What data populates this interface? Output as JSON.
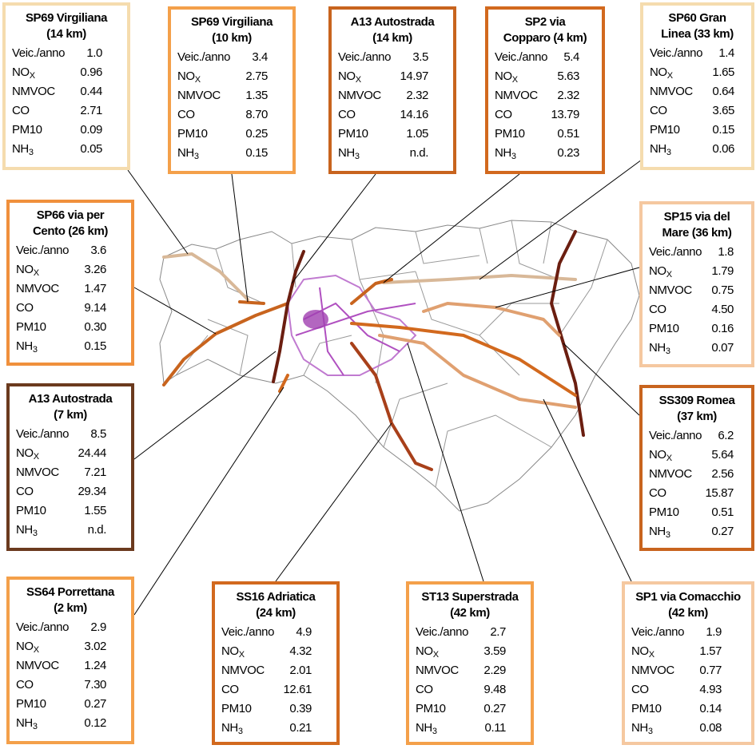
{
  "row_labels": [
    {
      "text": "Veic./anno"
    },
    {
      "text": "NO",
      "sub": "X"
    },
    {
      "text": "NMVOC"
    },
    {
      "text": "CO"
    },
    {
      "text": "PM10"
    },
    {
      "text": "NH",
      "sub": "3"
    }
  ],
  "boxes": [
    {
      "title": [
        "SP69 Virgiliana",
        "(14 km)"
      ],
      "color": "#f5dcae",
      "values": [
        "1.0",
        "0.96",
        "0.44",
        "2.71",
        "0.09",
        "0.05"
      ]
    },
    {
      "title": [
        "SP69 Virgiliana",
        "(10 km)"
      ],
      "color": "#f4a04a",
      "values": [
        "3.4",
        "2.75",
        "1.35",
        "8.70",
        "0.25",
        "0.15"
      ]
    },
    {
      "title": [
        "A13 Autostrada",
        "(14 km)"
      ],
      "color": "#c8641e",
      "values": [
        "3.5",
        "14.97",
        "2.32",
        "14.16",
        "1.05",
        "n.d."
      ]
    },
    {
      "title": [
        "SP2 via",
        "Copparo (4 km)"
      ],
      "color": "#d2691e",
      "values": [
        "5.4",
        "5.63",
        "2.32",
        "13.79",
        "0.51",
        "0.23"
      ]
    },
    {
      "title": [
        "SP60 Gran",
        "Linea (33 km)"
      ],
      "color": "#f5dcae",
      "values": [
        "1.4",
        "1.65",
        "0.64",
        "3.65",
        "0.15",
        "0.06"
      ]
    },
    {
      "title": [
        "SP66 via per",
        "Cento (26 km)"
      ],
      "color": "#f0903c",
      "values": [
        "3.6",
        "3.26",
        "1.47",
        "9.14",
        "0.30",
        "0.15"
      ]
    },
    {
      "title": [
        "SP15 via del",
        "Mare (36 km)"
      ],
      "color": "#f5c8a0",
      "values": [
        "1.8",
        "1.79",
        "0.75",
        "4.50",
        "0.16",
        "0.07"
      ]
    },
    {
      "title": [
        "A13 Autostrada",
        "(7 km)"
      ],
      "color": "#6b3a1e",
      "values": [
        "8.5",
        "24.44",
        "7.21",
        "29.34",
        "1.55",
        "n.d."
      ]
    },
    {
      "title": [
        "SS309 Romea",
        "(37 km)"
      ],
      "color": "#c8641e",
      "values": [
        "6.2",
        "5.64",
        "2.56",
        "15.87",
        "0.51",
        "0.27"
      ]
    },
    {
      "title": [
        "SS64 Porrettana",
        "(2 km)"
      ],
      "color": "#f4a04a",
      "values": [
        "2.9",
        "3.02",
        "1.24",
        "7.30",
        "0.27",
        "0.12"
      ]
    },
    {
      "title": [
        "SS16 Adriatica",
        "(24 km)"
      ],
      "color": "#d2691e",
      "values": [
        "4.9",
        "4.32",
        "2.01",
        "12.61",
        "0.39",
        "0.21"
      ]
    },
    {
      "title": [
        "ST13 Superstrada",
        "(42 km)"
      ],
      "color": "#f4a04a",
      "values": [
        "2.7",
        "3.59",
        "2.29",
        "9.48",
        "0.27",
        "0.11"
      ]
    },
    {
      "title": [
        "SP1 via Comacchio",
        "(42 km)"
      ],
      "color": "#f5c8a0",
      "values": [
        "1.9",
        "1.57",
        "0.77",
        "4.93",
        "0.14",
        "0.08"
      ]
    }
  ]
}
